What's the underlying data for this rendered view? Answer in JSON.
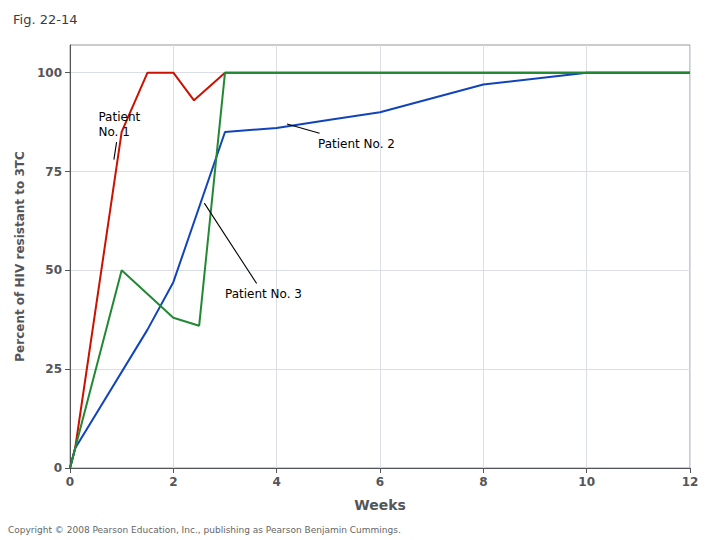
{
  "chart_data": {
    "type": "line",
    "title": "Fig. 22-14",
    "xlabel": "Weeks",
    "ylabel": "Percent of HIV resistant to 3TC",
    "xlim": [
      0,
      12
    ],
    "ylim": [
      0,
      107
    ],
    "xticks": [
      0,
      2,
      4,
      6,
      8,
      10,
      12
    ],
    "yticks": [
      0,
      25,
      50,
      75,
      100
    ],
    "grid": true,
    "series": [
      {
        "color": "#cc1100",
        "x": [
          0,
          0.1,
          1.0,
          1.5,
          2.0,
          2.4,
          3.0,
          4.0,
          6.0,
          8.0,
          10.0,
          12.0
        ],
        "values": [
          0,
          5,
          85,
          100,
          100,
          93,
          100,
          100,
          100,
          100,
          100,
          100
        ]
      },
      {
        "color": "#1144bb",
        "x": [
          0,
          0.1,
          1.5,
          2.0,
          3.0,
          4.0,
          5.0,
          6.0,
          8.0,
          10.0,
          12.0
        ],
        "values": [
          0,
          5,
          35,
          47,
          85,
          86,
          88,
          90,
          97,
          100,
          100
        ]
      },
      {
        "color": "#228833",
        "x": [
          0,
          0.1,
          1.0,
          2.0,
          2.5,
          3.0,
          4.0,
          6.0,
          8.0,
          10.0,
          12.0
        ],
        "values": [
          0,
          5,
          50,
          38,
          36,
          100,
          100,
          100,
          100,
          100,
          100
        ]
      }
    ],
    "annotations": [
      {
        "text": "Patient\nNo. 1",
        "xytext": [
          0.55,
          87
        ],
        "xy": [
          0.85,
          78
        ]
      },
      {
        "text": "Patient No. 2",
        "xytext": [
          4.8,
          82
        ],
        "xy": [
          4.2,
          87
        ]
      },
      {
        "text": "Patient No. 3",
        "xytext": [
          3.0,
          44
        ],
        "xy": [
          2.6,
          67
        ]
      },
      {
        "text": "Copyright © 2008 Pearson Education, Inc., publishing as Pearson Benjamin Cummings."
      }
    ]
  }
}
